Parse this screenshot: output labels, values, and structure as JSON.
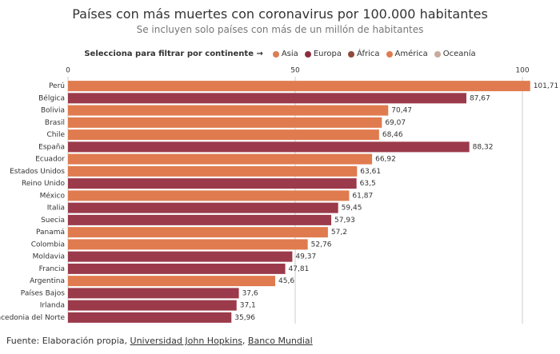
{
  "chart_data": {
    "type": "bar",
    "title": "Países con más muertes con coronavirus por 100.000 habitantes",
    "subtitle": "Se incluyen solo países con más de un millón de habitantes",
    "legend": {
      "label": "Selecciona para filtrar por continente →",
      "items": [
        {
          "name": "Asia",
          "color": "#d97f52"
        },
        {
          "name": "Europa",
          "color": "#8c2e3e"
        },
        {
          "name": "África",
          "color": "#8f4a3c"
        },
        {
          "name": "América",
          "color": "#e07b4f"
        },
        {
          "name": "Oceanía",
          "color": "#c9aa9e"
        }
      ]
    },
    "categories": [
      "Perú",
      "Bélgica",
      "Bolivia",
      "Brasil",
      "Chile",
      "España",
      "Ecuador",
      "Estados Unidos",
      "Reino Unido",
      "México",
      "Italia",
      "Suecia",
      "Panamá",
      "Colombia",
      "Moldavia",
      "Francia",
      "Argentina",
      "Países Bajos",
      "Irlanda",
      "acedonia del Norte"
    ],
    "values": [
      101.71,
      87.67,
      70.47,
      69.07,
      68.46,
      88.32,
      66.92,
      63.61,
      63.5,
      61.87,
      59.45,
      57.93,
      57.2,
      52.76,
      49.37,
      47.81,
      45.6,
      37.6,
      37.1,
      35.96
    ],
    "value_labels": [
      "101,71",
      "87,67",
      "70,47",
      "69,07",
      "68,46",
      "88,32",
      "66,92",
      "63,61",
      "63,5",
      "61,87",
      "59,45",
      "57,93",
      "57,2",
      "52,76",
      "49,37",
      "47,81",
      "45,6",
      "37,6",
      "37,1",
      "35,96"
    ],
    "colors": [
      "#e07b4f",
      "#9b3a4a",
      "#e07b4f",
      "#e07b4f",
      "#e07b4f",
      "#9b3a4a",
      "#e07b4f",
      "#e07b4f",
      "#9b3a4a",
      "#e07b4f",
      "#9b3a4a",
      "#9b3a4a",
      "#e07b4f",
      "#e07b4f",
      "#9b3a4a",
      "#9b3a4a",
      "#e07b4f",
      "#9b3a4a",
      "#9b3a4a",
      "#9b3a4a"
    ],
    "xlim": [
      0,
      100
    ],
    "xticks": [
      0,
      50,
      100
    ],
    "grid": true,
    "source": [
      "Fuente: Elaboración propia, ",
      "Universidad John Hopkins",
      ", ",
      "Banco Mundial"
    ]
  }
}
